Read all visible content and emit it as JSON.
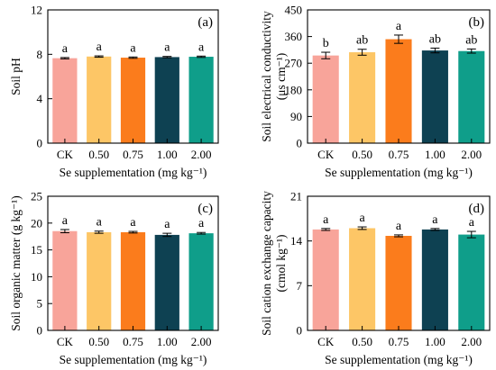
{
  "figure": {
    "colors": [
      "#f8a49a",
      "#fdc666",
      "#fb7c1c",
      "#0e4152",
      "#0f9e8a"
    ]
  },
  "chart_data": [
    {
      "type": "bar",
      "panel": "(a)",
      "categories": [
        "CK",
        "0.50",
        "0.75",
        "1.00",
        "2.00"
      ],
      "values": [
        7.65,
        7.8,
        7.7,
        7.75,
        7.78
      ],
      "errors": [
        0.06,
        0.06,
        0.06,
        0.06,
        0.06
      ],
      "significance": [
        "a",
        "a",
        "a",
        "a",
        "a"
      ],
      "xlabel": "Se supplementation (mg kg⁻¹)",
      "ylabel": "Soil pH",
      "ylabel2": "",
      "ylim": [
        0,
        12
      ],
      "yticks": [
        "0",
        "4",
        "8",
        "12"
      ]
    },
    {
      "type": "bar",
      "panel": "(b)",
      "categories": [
        "CK",
        "0.50",
        "0.75",
        "1.00",
        "2.00"
      ],
      "values": [
        296,
        307,
        351,
        313,
        311
      ],
      "errors": [
        11,
        10,
        14,
        8,
        7
      ],
      "significance": [
        "b",
        "ab",
        "a",
        "ab",
        "ab"
      ],
      "xlabel": "Se supplementation (mg kg⁻¹)",
      "ylabel": "Soil electrical conductivity",
      "ylabel2": "(μs cm⁻¹)",
      "ylim": [
        0,
        450
      ],
      "yticks": [
        "0",
        "90",
        "180",
        "270",
        "360",
        "450"
      ]
    },
    {
      "type": "bar",
      "panel": "(c)",
      "categories": [
        "CK",
        "0.50",
        "0.75",
        "1.00",
        "2.00"
      ],
      "values": [
        18.5,
        18.3,
        18.3,
        17.8,
        18.1
      ],
      "errors": [
        0.3,
        0.2,
        0.15,
        0.3,
        0.15
      ],
      "significance": [
        "a",
        "a",
        "a",
        "a",
        "a"
      ],
      "xlabel": "Se supplementation (mg kg⁻¹)",
      "ylabel": "Soil organic matter (g kg⁻¹)",
      "ylabel2": "",
      "ylim": [
        0,
        25
      ],
      "yticks": [
        "0",
        "5",
        "10",
        "15",
        "20",
        "25"
      ]
    },
    {
      "type": "bar",
      "panel": "(d)",
      "categories": [
        "CK",
        "0.50",
        "0.75",
        "1.00",
        "2.00"
      ],
      "values": [
        15.8,
        16.0,
        14.8,
        15.8,
        15.0
      ],
      "errors": [
        0.15,
        0.2,
        0.15,
        0.15,
        0.5
      ],
      "significance": [
        "a",
        "a",
        "a",
        "a",
        "a"
      ],
      "xlabel": "Se supplementation (mg kg⁻¹)",
      "ylabel": "Soil cation exchange capacity",
      "ylabel2": "(cmol kg⁻¹)",
      "ylim": [
        0,
        21
      ],
      "yticks": [
        "0",
        "7",
        "14",
        "21"
      ]
    }
  ]
}
